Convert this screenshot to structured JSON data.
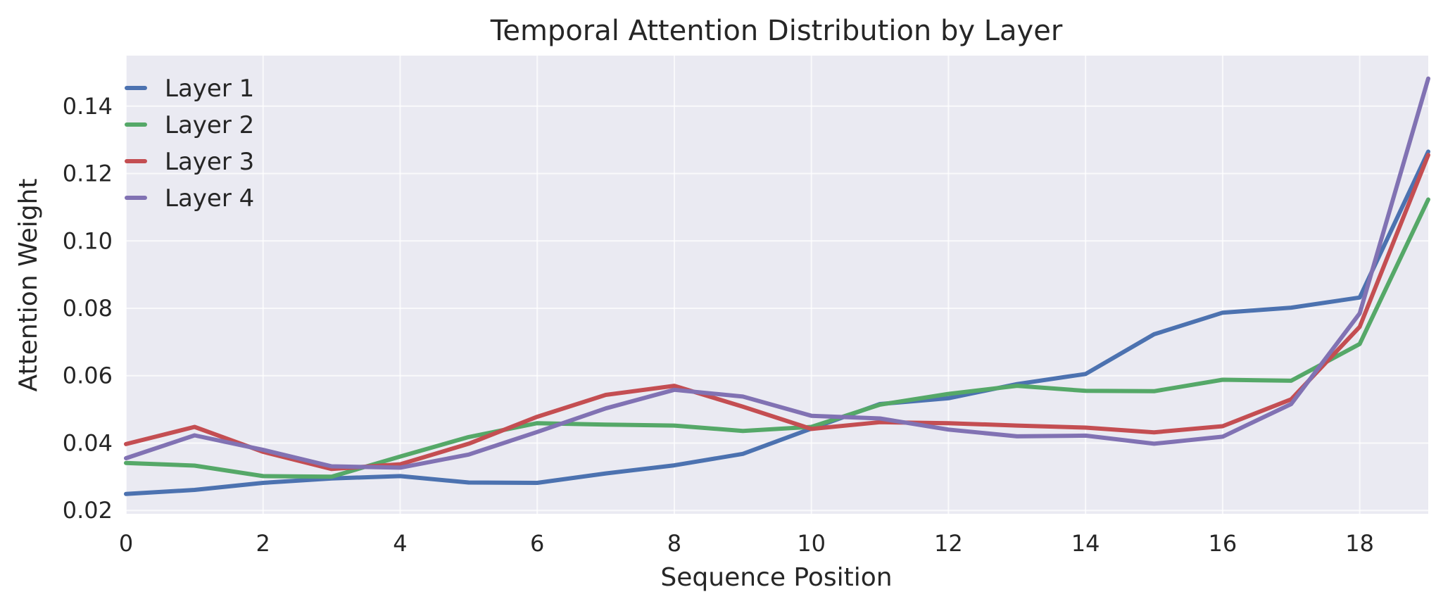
{
  "chart_data": {
    "type": "line",
    "title": "Temporal Attention Distribution by Layer",
    "xlabel": "Sequence Position",
    "ylabel": "Attention Weight",
    "x": [
      0,
      1,
      2,
      3,
      4,
      5,
      6,
      7,
      8,
      9,
      10,
      11,
      12,
      13,
      14,
      15,
      16,
      17,
      18,
      19
    ],
    "xlim": [
      0,
      19
    ],
    "ylim": [
      0.019,
      0.155
    ],
    "xticks": [
      0,
      2,
      4,
      6,
      8,
      10,
      12,
      14,
      16,
      18
    ],
    "yticks": [
      0.02,
      0.04,
      0.06,
      0.08,
      0.1,
      0.12,
      0.14
    ],
    "ytick_labels": [
      "0.02",
      "0.04",
      "0.06",
      "0.08",
      "0.10",
      "0.12",
      "0.14"
    ],
    "grid": true,
    "legend_position": "top-left",
    "background": "#eaeaf2",
    "series": [
      {
        "name": "Layer 1",
        "color": "#4c72b0",
        "values": [
          0.0249,
          0.0261,
          0.0282,
          0.0295,
          0.0302,
          0.0283,
          0.0282,
          0.031,
          0.0334,
          0.0368,
          0.0443,
          0.0516,
          0.0533,
          0.0575,
          0.0605,
          0.0723,
          0.0787,
          0.0802,
          0.0832,
          0.1265
        ]
      },
      {
        "name": "Layer 2",
        "color": "#55a868",
        "values": [
          0.0341,
          0.0333,
          0.0302,
          0.03,
          0.036,
          0.0418,
          0.0459,
          0.0455,
          0.0452,
          0.0436,
          0.0448,
          0.0514,
          0.0546,
          0.057,
          0.0555,
          0.0554,
          0.0588,
          0.0585,
          0.0694,
          0.1123
        ]
      },
      {
        "name": "Layer 3",
        "color": "#c44e52",
        "values": [
          0.0397,
          0.0448,
          0.0374,
          0.0323,
          0.0337,
          0.0398,
          0.0478,
          0.0543,
          0.057,
          0.0508,
          0.0442,
          0.0462,
          0.0459,
          0.0452,
          0.0446,
          0.0432,
          0.045,
          0.053,
          0.0745,
          0.1255
        ]
      },
      {
        "name": "Layer 4",
        "color": "#8172b3",
        "values": [
          0.0355,
          0.0423,
          0.038,
          0.0331,
          0.0327,
          0.0366,
          0.0433,
          0.0503,
          0.0558,
          0.0538,
          0.0481,
          0.0473,
          0.044,
          0.042,
          0.0422,
          0.0398,
          0.0419,
          0.0516,
          0.0785,
          0.1482
        ]
      }
    ]
  }
}
